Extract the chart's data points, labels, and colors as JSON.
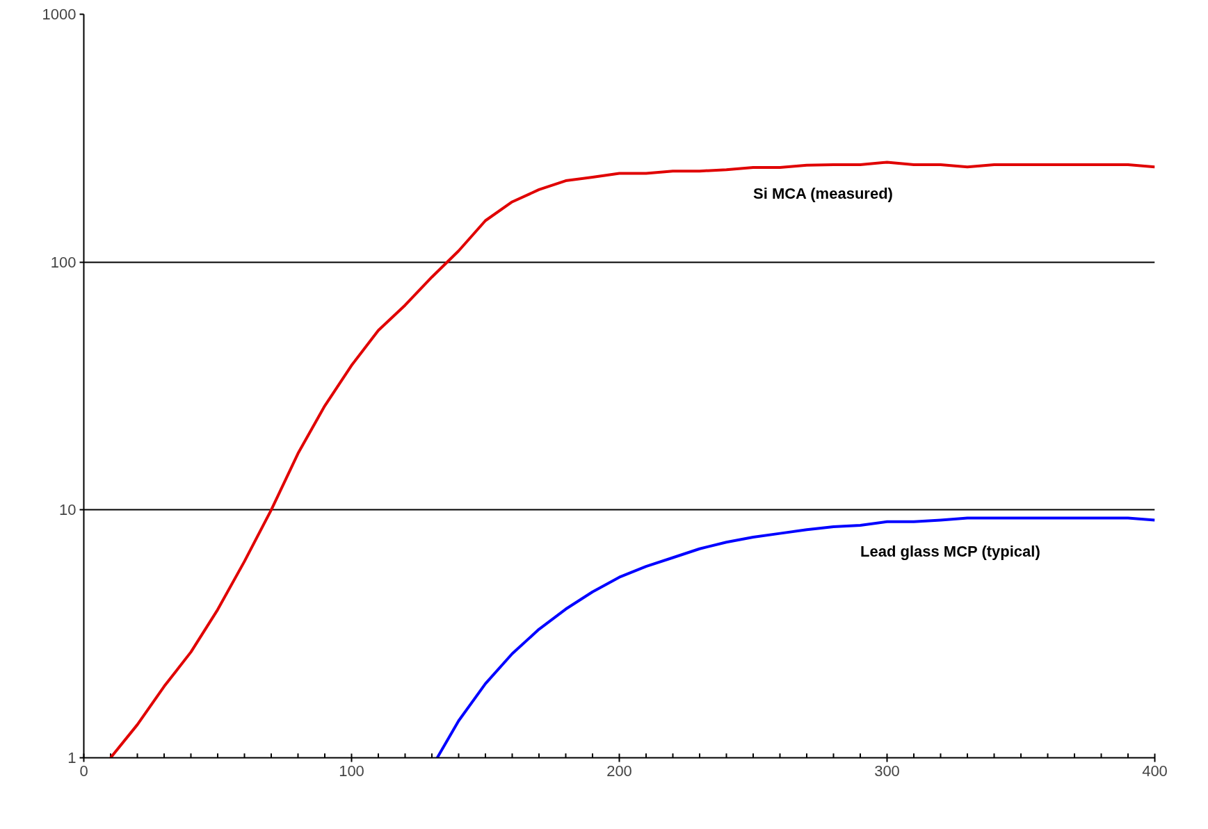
{
  "chart_data": {
    "type": "line",
    "log": "y",
    "grid": "y",
    "marker": "none",
    "line_style": "solid",
    "xlim": [
      0,
      400
    ],
    "ylim": [
      1,
      1000
    ],
    "xticks": [
      0,
      {
        "value": 10,
        "label": null
      },
      {
        "value": 20,
        "label": null
      },
      {
        "value": 30,
        "label": null
      },
      {
        "value": 40,
        "label": null
      },
      {
        "value": 50,
        "label": null
      },
      {
        "value": 60,
        "label": null
      },
      {
        "value": 70,
        "label": null
      },
      {
        "value": 80,
        "label": null
      },
      {
        "value": 90,
        "label": null
      },
      100,
      {
        "value": 110,
        "label": null
      },
      {
        "value": 120,
        "label": null
      },
      {
        "value": 130,
        "label": null
      },
      {
        "value": 140,
        "label": null
      },
      {
        "value": 150,
        "label": null
      },
      {
        "value": 160,
        "label": null
      },
      {
        "value": 170,
        "label": null
      },
      {
        "value": 180,
        "label": null
      },
      {
        "value": 190,
        "label": null
      },
      200,
      {
        "value": 210,
        "label": null
      },
      {
        "value": 220,
        "label": null
      },
      {
        "value": 230,
        "label": null
      },
      {
        "value": 240,
        "label": null
      },
      {
        "value": 250,
        "label": null
      },
      {
        "value": 260,
        "label": null
      },
      {
        "value": 270,
        "label": null
      },
      {
        "value": 280,
        "label": null
      },
      {
        "value": 290,
        "label": null
      },
      300,
      {
        "value": 310,
        "label": null
      },
      {
        "value": 320,
        "label": null
      },
      {
        "value": 330,
        "label": null
      },
      {
        "value": 340,
        "label": null
      },
      {
        "value": 350,
        "label": null
      },
      {
        "value": 360,
        "label": null
      },
      {
        "value": 370,
        "label": null
      },
      {
        "value": 380,
        "label": null
      },
      {
        "value": 390,
        "label": null
      },
      400
    ],
    "yticks": [
      1,
      10,
      100,
      1000
    ],
    "series": [
      {
        "name": "Si MCA (measured)",
        "color": "#e00000",
        "x": [
          10,
          20,
          30,
          40,
          50,
          60,
          70,
          80,
          90,
          100,
          110,
          120,
          130,
          140,
          150,
          160,
          170,
          180,
          190,
          200,
          210,
          220,
          230,
          240,
          250,
          260,
          270,
          280,
          290,
          300,
          310,
          320,
          330,
          340,
          350,
          360,
          370,
          380,
          390,
          400
        ],
        "values": [
          1.0,
          1.36,
          1.94,
          2.67,
          3.96,
          6.2,
          10,
          16.9,
          26.3,
          38.3,
          53,
          67,
          87,
          111,
          147,
          175,
          196,
          213,
          220,
          228,
          228,
          233,
          233,
          236,
          241,
          241,
          246,
          247,
          247,
          253,
          247,
          247,
          242,
          247,
          247,
          247,
          247,
          247,
          247,
          242
        ]
      },
      {
        "name": "Lead glass MCP (typical)",
        "color": "#0000ff",
        "x": [
          132,
          140,
          150,
          160,
          170,
          180,
          190,
          200,
          210,
          220,
          230,
          240,
          250,
          260,
          270,
          280,
          290,
          300,
          310,
          320,
          330,
          340,
          350,
          360,
          370,
          380,
          390,
          400
        ],
        "values": [
          1.0,
          1.41,
          1.99,
          2.63,
          3.3,
          3.98,
          4.67,
          5.35,
          5.92,
          6.42,
          6.97,
          7.41,
          7.77,
          8.04,
          8.32,
          8.55,
          8.67,
          8.97,
          8.97,
          9.1,
          9.27,
          9.27,
          9.27,
          9.27,
          9.27,
          9.27,
          9.27,
          9.1
        ]
      }
    ]
  }
}
